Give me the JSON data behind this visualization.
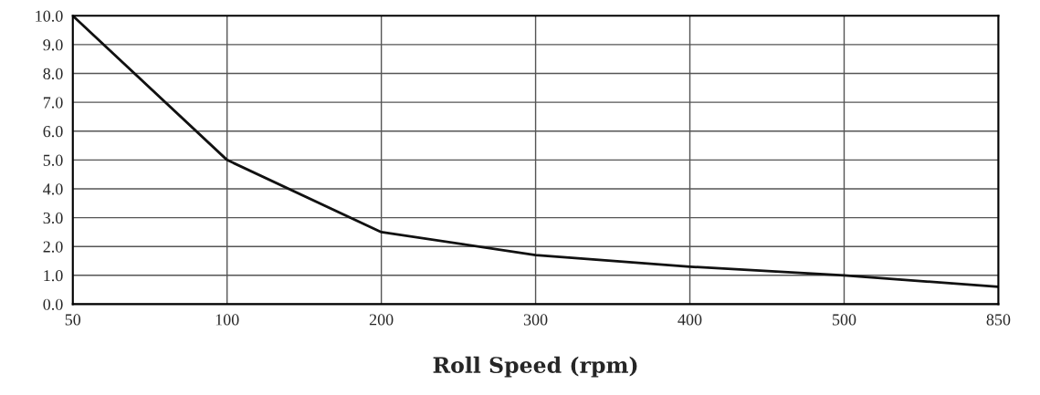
{
  "chart_data": {
    "type": "line",
    "xlabel": "Roll Speed (rpm)",
    "categories": [
      "50",
      "100",
      "200",
      "300",
      "400",
      "500",
      "850"
    ],
    "series": [
      {
        "color": "#111111",
        "values": [
          10.0,
          5.0,
          2.5,
          1.7,
          1.3,
          1.0,
          0.6
        ]
      }
    ],
    "ylim": [
      0,
      10
    ],
    "yticks": [
      {
        "value": 0,
        "label": "0.0"
      },
      {
        "value": 1,
        "label": "1.0"
      },
      {
        "value": 2,
        "label": "2.0"
      },
      {
        "value": 3,
        "label": "3.0"
      },
      {
        "value": 4,
        "label": "4.0"
      },
      {
        "value": 5,
        "label": "5.0"
      },
      {
        "value": 6,
        "label": "6.0"
      },
      {
        "value": 7,
        "label": "7.0"
      },
      {
        "value": 8,
        "label": "8.0"
      },
      {
        "value": 9,
        "label": "9.0"
      },
      {
        "value": 10,
        "label": "10.0"
      }
    ],
    "grid": true,
    "marker": "none",
    "line_style": "solid"
  }
}
